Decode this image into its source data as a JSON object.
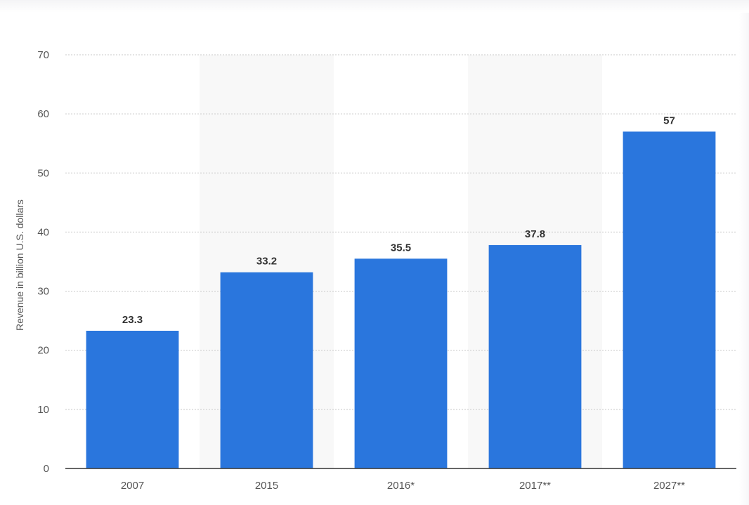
{
  "chart_data": {
    "type": "bar",
    "title": "",
    "xlabel": "",
    "ylabel": "Revenue in billion U.S. dollars",
    "categories": [
      "2007",
      "2015",
      "2016*",
      "2017**",
      "2027**"
    ],
    "values": [
      23.3,
      33.2,
      35.5,
      37.8,
      57
    ],
    "value_labels": [
      "23.3",
      "33.2",
      "35.5",
      "37.8",
      "57"
    ],
    "ylim": [
      0,
      70
    ],
    "yticks": [
      0,
      10,
      20,
      30,
      40,
      50,
      60,
      70
    ],
    "grid": true,
    "legend": "none",
    "colors": {
      "bar": "#2a76dd",
      "alt_band": "#f8f8f8",
      "grid": "#c8c8c8",
      "axis": "#333333"
    }
  }
}
